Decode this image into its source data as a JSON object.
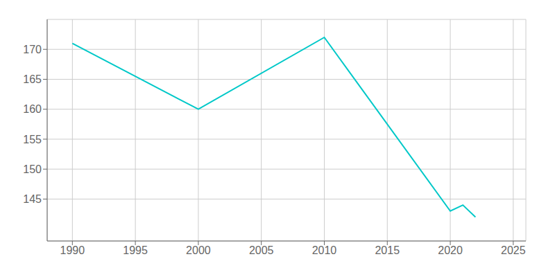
{
  "chart_data": {
    "type": "line",
    "x": [
      1990,
      2000,
      2010,
      2020,
      2021,
      2022
    ],
    "values": [
      171,
      160,
      172,
      143,
      144,
      142
    ],
    "color": "#00c8c8",
    "xlim": [
      1988,
      2026
    ],
    "ylim": [
      138,
      175
    ],
    "xticks": [
      1990,
      1995,
      2000,
      2005,
      2010,
      2015,
      2020,
      2025
    ],
    "yticks": [
      145,
      150,
      155,
      160,
      165,
      170
    ],
    "grid": true
  }
}
